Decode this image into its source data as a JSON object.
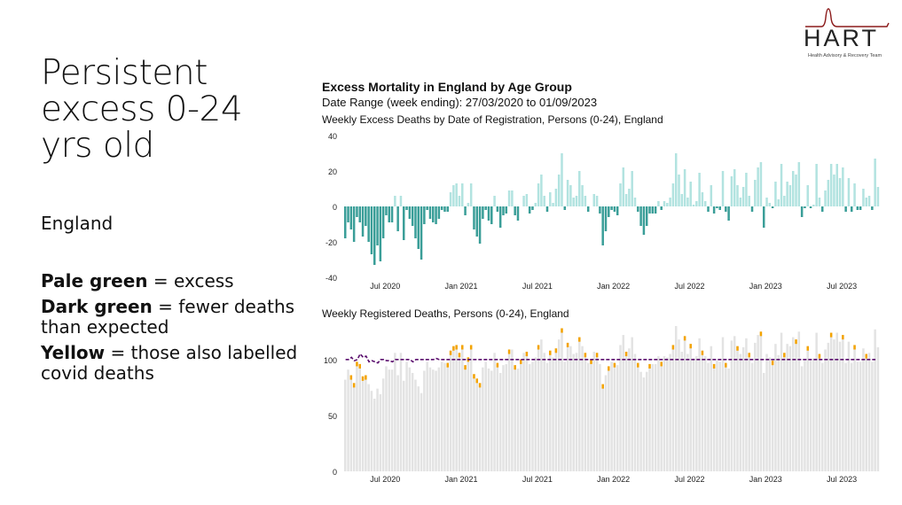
{
  "slide": {
    "title": "Persistent excess 0-24 yrs old",
    "region": "England",
    "notes": [
      {
        "key": "Pale green",
        "text": " = excess"
      },
      {
        "key": "Dark green",
        "text": " = fewer deaths than expected"
      },
      {
        "key": "Yellow",
        "text": " = those also labelled covid deaths"
      }
    ]
  },
  "logo": {
    "name": "HART",
    "subtitle": "Health Advisory & Recovery Team",
    "color": "#8b1a1a"
  },
  "header": {
    "title": "Excess Mortality in England by Age Group",
    "subtitle": "Date Range (week ending): 27/03/2020 to 01/09/2023"
  },
  "colors": {
    "excess": "#b2e3e0",
    "deficit": "#3a9e98",
    "covid": "#f4a300",
    "expected": "#5b0f6e",
    "registered": "#e3e3e3"
  },
  "chart_data": [
    {
      "type": "bar",
      "title": "Weekly Excess Deaths by Date of Registration, Persons (0-24), England",
      "ylim": [
        -40,
        40
      ],
      "yticks": [
        40,
        20,
        0,
        -20,
        -40
      ],
      "xticks": [
        {
          "label": "Jul 2020",
          "week": 14
        },
        {
          "label": "Jan 2021",
          "week": 40
        },
        {
          "label": "Jul 2021",
          "week": 66
        },
        {
          "label": "Jan 2022",
          "week": 92
        },
        {
          "label": "Jul 2022",
          "week": 118
        },
        {
          "label": "Jan 2023",
          "week": 144
        },
        {
          "label": "Jul 2023",
          "week": 170
        }
      ],
      "values": [
        -18,
        -9,
        -13,
        -20,
        -6,
        -9,
        -17,
        -11,
        -20,
        -27,
        -33,
        -22,
        -31,
        -18,
        -5,
        -9,
        -9,
        6,
        -14,
        6,
        -19,
        -2,
        -7,
        -11,
        -18,
        -24,
        -30,
        -10,
        -2,
        -7,
        -9,
        -10,
        -7,
        -2,
        -3,
        -3,
        8,
        12,
        13,
        6,
        13,
        -5,
        2,
        13,
        -13,
        -17,
        -21,
        -7,
        -2,
        -8,
        -10,
        6,
        -3,
        -12,
        -5,
        -4,
        9,
        9,
        -5,
        -8,
        0,
        6,
        7,
        -4,
        -2,
        2,
        13,
        18,
        6,
        -3,
        8,
        2,
        10,
        18,
        30,
        -2,
        15,
        12,
        5,
        6,
        20,
        12,
        6,
        -3,
        0,
        7,
        6,
        -4,
        -22,
        -14,
        -6,
        -2,
        -3,
        -5,
        13,
        22,
        7,
        10,
        20,
        5,
        -3,
        -11,
        -16,
        -11,
        -4,
        -4,
        -4,
        3,
        -2,
        3,
        2,
        5,
        13,
        30,
        18,
        7,
        21,
        5,
        14,
        1,
        3,
        19,
        8,
        3,
        -3,
        12,
        -4,
        -1,
        -2,
        20,
        -3,
        -8,
        17,
        21,
        12,
        5,
        11,
        19,
        6,
        -3,
        15,
        22,
        25,
        -12,
        5,
        2,
        -1,
        14,
        4,
        24,
        6,
        14,
        12,
        20,
        18,
        25,
        -6,
        -1,
        12,
        -1,
        1,
        24,
        5,
        -3,
        9,
        15,
        24,
        18,
        24,
        16,
        22,
        -3,
        16,
        -3,
        13,
        -2,
        -2,
        10,
        5,
        6,
        -2,
        27,
        11
      ],
      "labels_hidden": true
    },
    {
      "type": "bar+line",
      "title": "Weekly Registered Deaths, Persons (0-24), England",
      "ylim": [
        0,
        130
      ],
      "yticks": [
        100,
        50,
        0
      ],
      "xticks": [
        {
          "label": "Jul 2020",
          "week": 14
        },
        {
          "label": "Jan 2021",
          "week": 40
        },
        {
          "label": "Jul 2021",
          "week": 66
        },
        {
          "label": "Jan 2022",
          "week": 92
        },
        {
          "label": "Jul 2022",
          "week": 118
        },
        {
          "label": "Jan 2023",
          "week": 144
        },
        {
          "label": "Jul 2023",
          "week": 170
        }
      ],
      "series": [
        {
          "name": "Registered deaths",
          "style": "bar"
        },
        {
          "name": "Expected deaths",
          "style": "dashed-line"
        },
        {
          "name": "Covid-labelled deaths",
          "style": "bar-top"
        }
      ],
      "registered": [
        82,
        91,
        86,
        79,
        98,
        96,
        85,
        86,
        78,
        72,
        65,
        74,
        69,
        83,
        94,
        91,
        91,
        106,
        86,
        106,
        81,
        98,
        93,
        88,
        82,
        76,
        70,
        90,
        98,
        93,
        91,
        90,
        93,
        98,
        97,
        97,
        108,
        112,
        113,
        106,
        113,
        95,
        102,
        113,
        87,
        83,
        79,
        93,
        98,
        92,
        90,
        106,
        97,
        88,
        95,
        96,
        109,
        109,
        95,
        92,
        100,
        106,
        107,
        96,
        98,
        102,
        113,
        118,
        106,
        97,
        108,
        102,
        110,
        118,
        128,
        98,
        115,
        112,
        105,
        106,
        120,
        112,
        106,
        97,
        100,
        107,
        106,
        96,
        78,
        86,
        94,
        98,
        97,
        95,
        113,
        122,
        107,
        110,
        120,
        105,
        97,
        89,
        84,
        89,
        96,
        96,
        96,
        103,
        98,
        103,
        102,
        105,
        113,
        130,
        118,
        107,
        121,
        105,
        114,
        101,
        103,
        119,
        108,
        103,
        97,
        112,
        96,
        99,
        98,
        120,
        97,
        92,
        117,
        121,
        112,
        105,
        111,
        119,
        106,
        97,
        115,
        122,
        125,
        88,
        105,
        102,
        99,
        114,
        104,
        124,
        106,
        114,
        112,
        120,
        118,
        125,
        94,
        99,
        112,
        99,
        101,
        124,
        105,
        97,
        109,
        115,
        124,
        118,
        124,
        116,
        122,
        97,
        116,
        97,
        113,
        98,
        98,
        110,
        105,
        106,
        98,
        127,
        111
      ],
      "expected": [
        100,
        100,
        102,
        99,
        100,
        105,
        102,
        103,
        98,
        99,
        98,
        97,
        100,
        100,
        99,
        99,
        98,
        100,
        100,
        100,
        100,
        100,
        100,
        98,
        100,
        100,
        100,
        100,
        100,
        100,
        100,
        101,
        100,
        100,
        100,
        100,
        100,
        100,
        100,
        100,
        100,
        100,
        100,
        100,
        100,
        100,
        100,
        100,
        100,
        100,
        100,
        100,
        100,
        100,
        100,
        100,
        100,
        100,
        100,
        100,
        100,
        100,
        100,
        100,
        100,
        100,
        100,
        100,
        100,
        100,
        100,
        100,
        100,
        100,
        100,
        100,
        100,
        100,
        100,
        100,
        100,
        100,
        100,
        100,
        100,
        100,
        100,
        100,
        100,
        100,
        100,
        100,
        100,
        100,
        100,
        100,
        100,
        100,
        100,
        100,
        100,
        100,
        100,
        100,
        100,
        100,
        100,
        100,
        100,
        100,
        100,
        100,
        100,
        100,
        100,
        100,
        100,
        100,
        100,
        100,
        100,
        100,
        100,
        100,
        100,
        100,
        100,
        100,
        100,
        100,
        100,
        100,
        100,
        100,
        100,
        100,
        100,
        100,
        100,
        100,
        100,
        100,
        100,
        100,
        100,
        100,
        100,
        100,
        100,
        100,
        100,
        100,
        100,
        100,
        100,
        100,
        100,
        100,
        100,
        100,
        100,
        100,
        100,
        100,
        100,
        100,
        100,
        100,
        100,
        100,
        100,
        100,
        100,
        100,
        100,
        100,
        100,
        100,
        100,
        100,
        100,
        100
      ],
      "covid_weeks": [
        2,
        3,
        4,
        5,
        6,
        7,
        35,
        36,
        37,
        38,
        39,
        40,
        41,
        42,
        43,
        44,
        45,
        46,
        52,
        56,
        58,
        60,
        62,
        66,
        70,
        72,
        74,
        76,
        80,
        82,
        84,
        86,
        88,
        90,
        92,
        96,
        100,
        104,
        108,
        112,
        116,
        118,
        122,
        126,
        130,
        134,
        138,
        142,
        146,
        150,
        154,
        158,
        162,
        166,
        170,
        174,
        178
      ],
      "covid_height": 4
    }
  ]
}
